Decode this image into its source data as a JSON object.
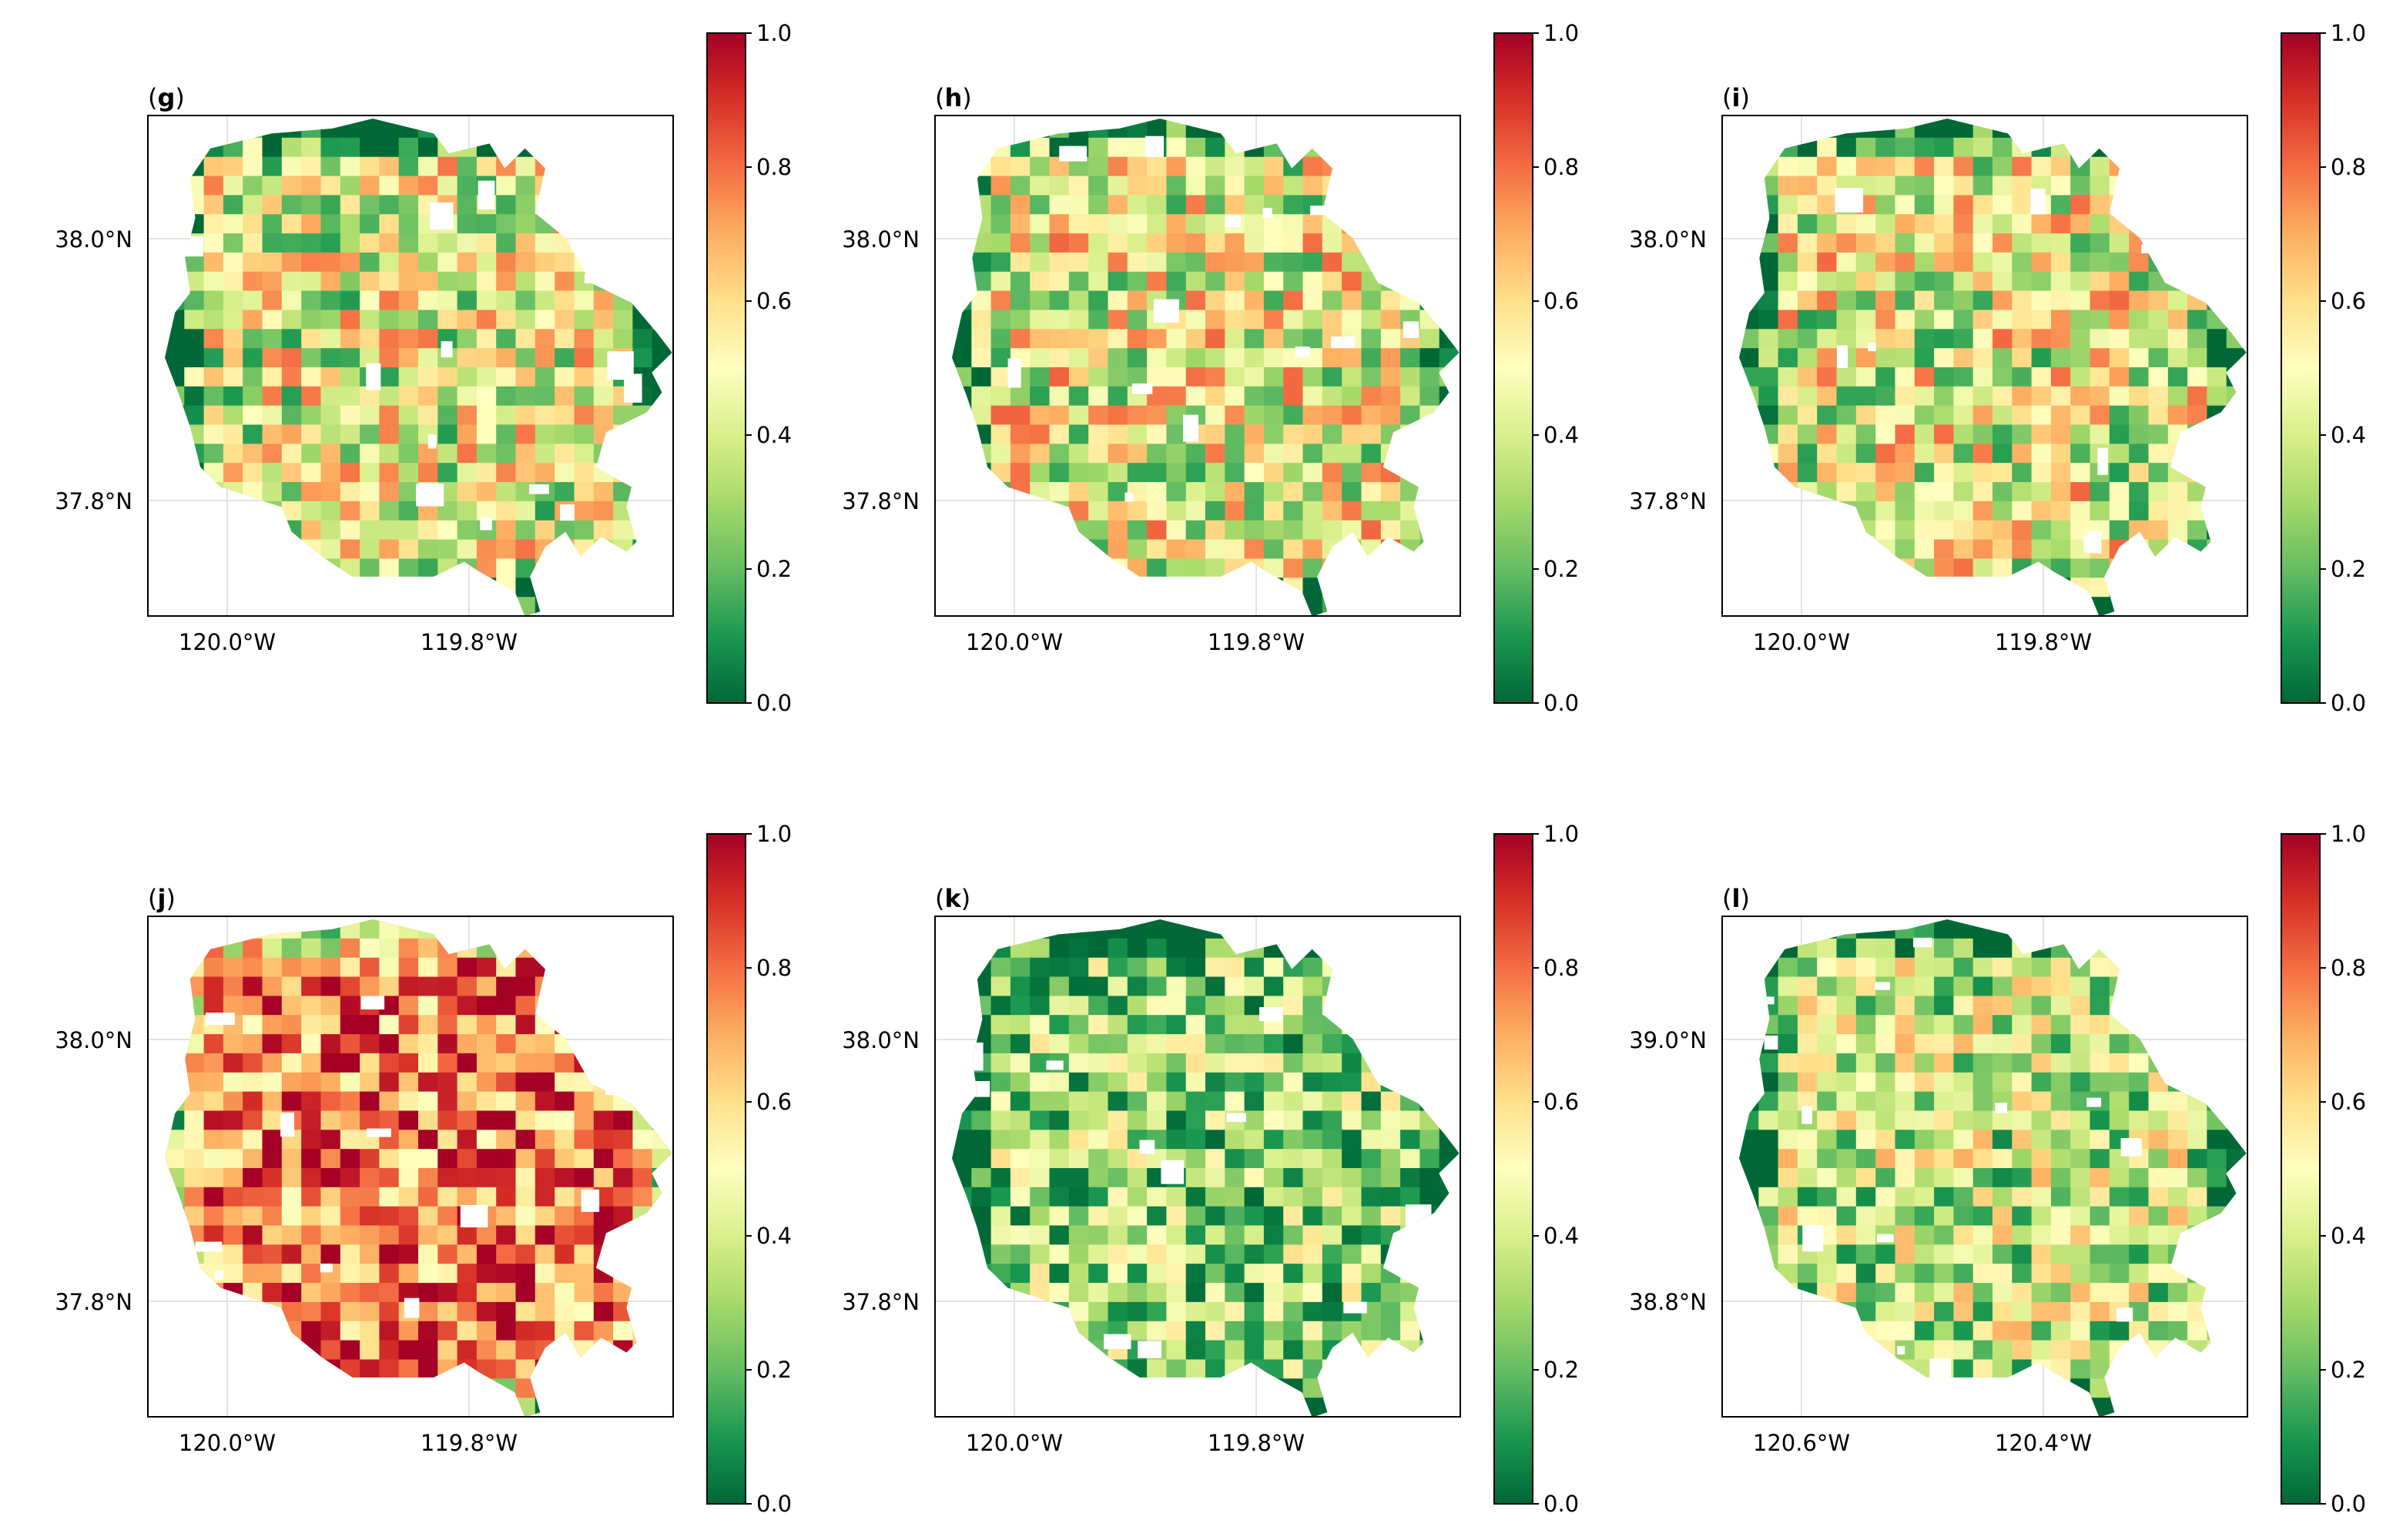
{
  "figure": {
    "colorbar": {
      "ticks": [
        "0.0",
        "0.2",
        "0.4",
        "0.6",
        "0.8",
        "1.0"
      ],
      "colormap": [
        "#006837",
        "#1a9850",
        "#66bd63",
        "#a6d96a",
        "#d9ef8b",
        "#ffffbf",
        "#fee08b",
        "#fdae61",
        "#f46d43",
        "#d73027",
        "#a50026"
      ]
    },
    "panels": [
      {
        "id": "g",
        "label_open": "(",
        "label_letter": "g",
        "label_close": ")",
        "lat_ticks": [
          "38.0°N",
          "37.8°N"
        ],
        "lon_ticks": [
          "120.0°W",
          "119.8°W"
        ],
        "value_mean": 0.45,
        "value_spread": 0.35
      },
      {
        "id": "h",
        "label_open": "(",
        "label_letter": "h",
        "label_close": ")",
        "lat_ticks": [
          "38.0°N",
          "37.8°N"
        ],
        "lon_ticks": [
          "120.0°W",
          "119.8°W"
        ],
        "value_mean": 0.47,
        "value_spread": 0.35
      },
      {
        "id": "i",
        "label_open": "(",
        "label_letter": "i",
        "label_close": ")",
        "lat_ticks": [
          "38.0°N",
          "37.8°N"
        ],
        "lon_ticks": [
          "120.0°W",
          "119.8°W"
        ],
        "value_mean": 0.46,
        "value_spread": 0.35
      },
      {
        "id": "j",
        "label_open": "(",
        "label_letter": "j",
        "label_close": ")",
        "lat_ticks": [
          "38.0°N",
          "37.8°N"
        ],
        "lon_ticks": [
          "120.0°W",
          "119.8°W"
        ],
        "value_mean": 0.78,
        "value_spread": 0.3
      },
      {
        "id": "k",
        "label_open": "(",
        "label_letter": "k",
        "label_close": ")",
        "lat_ticks": [
          "38.0°N",
          "37.8°N"
        ],
        "lon_ticks": [
          "120.0°W",
          "119.8°W"
        ],
        "value_mean": 0.3,
        "value_spread": 0.3
      },
      {
        "id": "l",
        "label_open": "(",
        "label_letter": "l",
        "label_close": ")",
        "lat_ticks": [
          "39.0°N",
          "38.8°N"
        ],
        "lon_ticks": [
          "120.6°W",
          "120.4°W"
        ],
        "value_mean": 0.38,
        "value_spread": 0.32
      }
    ]
  }
}
